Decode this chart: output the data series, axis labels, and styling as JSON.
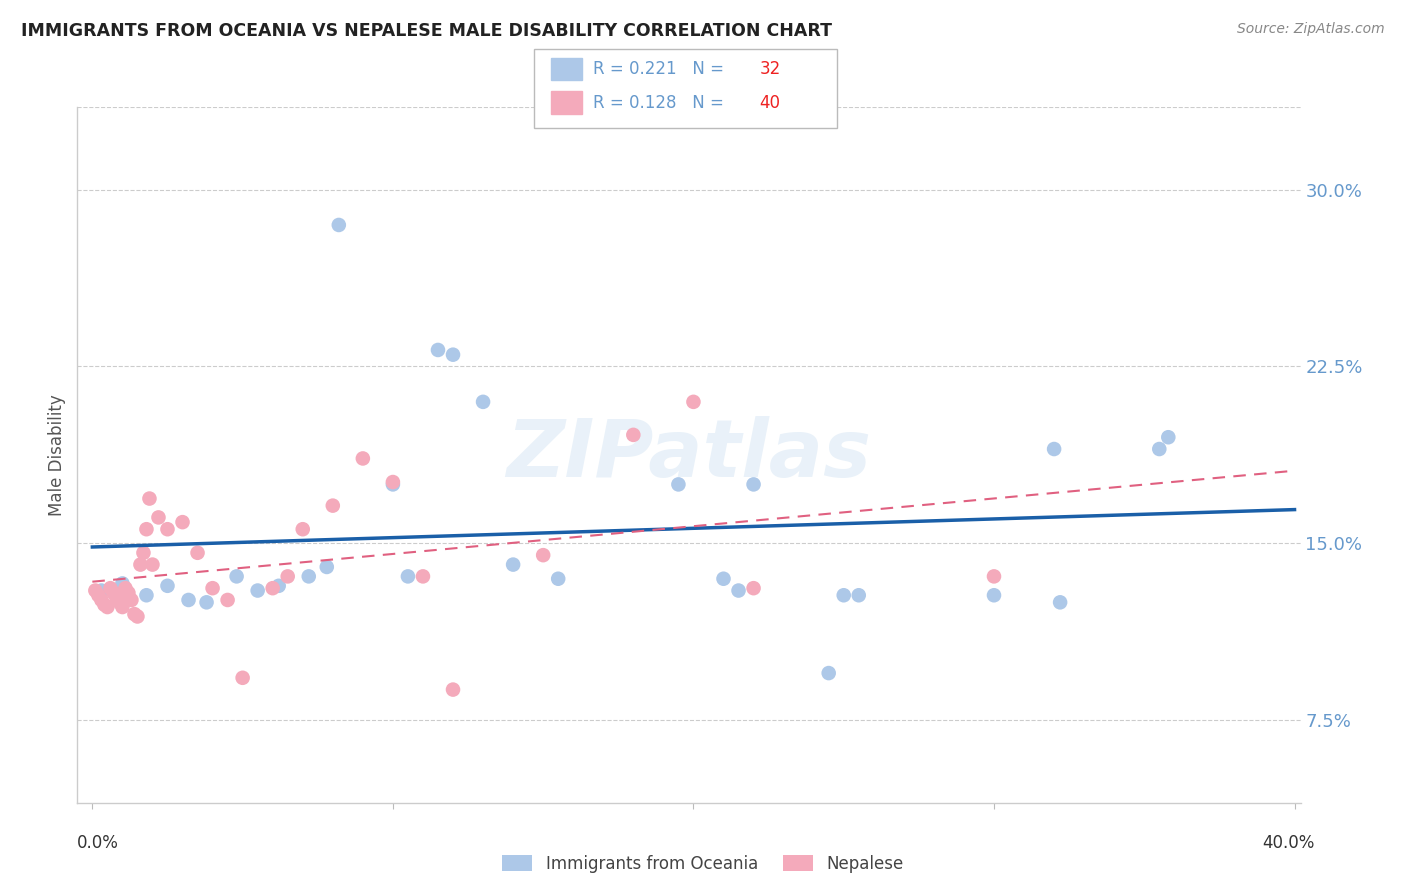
{
  "title": "IMMIGRANTS FROM OCEANIA VS NEPALESE MALE DISABILITY CORRELATION CHART",
  "source": "Source: ZipAtlas.com",
  "ylabel": "Male Disability",
  "y_ticks": [
    0.075,
    0.15,
    0.225,
    0.3
  ],
  "y_tick_labels": [
    "7.5%",
    "15.0%",
    "22.5%",
    "30.0%"
  ],
  "xlim": [
    0.0,
    0.4
  ],
  "ylim": [
    0.04,
    0.335
  ],
  "watermark": "ZIPatlas",
  "blue_color": "#adc8e8",
  "blue_line_color": "#1a5fa8",
  "pink_color": "#f4aabb",
  "pink_line_color": "#e06080",
  "right_tick_color": "#6699cc",
  "background_color": "#ffffff",
  "blue_points_x": [
    0.003,
    0.01,
    0.015,
    0.02,
    0.025,
    0.03,
    0.04,
    0.05,
    0.055,
    0.06,
    0.07,
    0.075,
    0.08,
    0.1,
    0.105,
    0.115,
    0.12,
    0.13,
    0.14,
    0.155,
    0.19,
    0.21,
    0.215,
    0.22,
    0.24,
    0.245,
    0.26,
    0.3,
    0.32,
    0.32,
    0.35,
    0.355
  ],
  "blue_points_y": [
    0.13,
    0.133,
    0.128,
    0.131,
    0.127,
    0.125,
    0.123,
    0.136,
    0.129,
    0.132,
    0.136,
    0.139,
    0.285,
    0.175,
    0.136,
    0.232,
    0.23,
    0.21,
    0.141,
    0.135,
    0.175,
    0.135,
    0.13,
    0.095,
    0.095,
    0.128,
    0.128,
    0.128,
    0.19,
    0.125,
    0.19,
    0.195
  ],
  "pink_points_x": [
    0.001,
    0.002,
    0.003,
    0.004,
    0.005,
    0.006,
    0.007,
    0.008,
    0.009,
    0.01,
    0.011,
    0.012,
    0.013,
    0.014,
    0.015,
    0.016,
    0.017,
    0.018,
    0.019,
    0.02,
    0.022,
    0.025,
    0.03,
    0.035,
    0.04,
    0.045,
    0.05,
    0.055,
    0.06,
    0.065,
    0.07,
    0.08,
    0.09,
    0.1,
    0.11,
    0.12,
    0.15,
    0.18,
    0.22,
    0.3
  ],
  "pink_points_y": [
    0.13,
    0.128,
    0.126,
    0.124,
    0.123,
    0.131,
    0.129,
    0.127,
    0.125,
    0.123,
    0.131,
    0.129,
    0.126,
    0.12,
    0.119,
    0.141,
    0.146,
    0.156,
    0.169,
    0.141,
    0.161,
    0.156,
    0.159,
    0.146,
    0.131,
    0.126,
    0.093,
    0.126,
    0.131,
    0.136,
    0.156,
    0.166,
    0.186,
    0.176,
    0.136,
    0.088,
    0.145,
    0.196,
    0.131,
    0.136
  ]
}
